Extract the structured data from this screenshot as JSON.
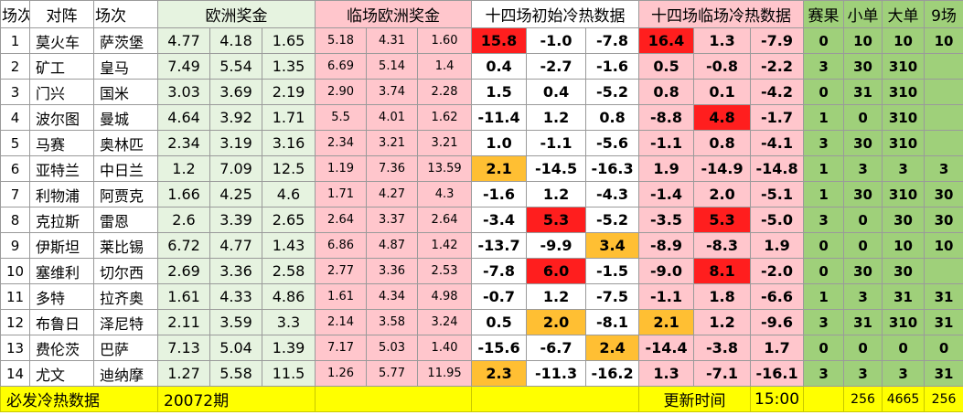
{
  "header": {
    "no": "场次",
    "match": "对阵",
    "match2": "场次",
    "euro": "欧洲奖金",
    "live_euro": "临场欧洲奖金",
    "init_temp": "十四场初始冷热数据",
    "live_temp": "十四场临场冷热数据",
    "result": "赛果",
    "small": "小单",
    "big": "大单",
    "nine": "9场"
  },
  "rows": [
    {
      "no": "1",
      "home": "莫火车",
      "away": "萨茨堡",
      "e": [
        "4.77",
        "4.18",
        "1.65"
      ],
      "l": [
        "5.18",
        "4.31",
        "1.60"
      ],
      "i": [
        "15.8",
        "-1.0",
        "-7.8"
      ],
      "c": [
        "16.4",
        "1.3",
        "-7.9"
      ],
      "r": "0",
      "s": "10",
      "b": "10",
      "n": "10"
    },
    {
      "no": "2",
      "home": "矿工",
      "away": "皇马",
      "e": [
        "7.49",
        "5.54",
        "1.35"
      ],
      "l": [
        "6.69",
        "5.14",
        "1.4"
      ],
      "i": [
        "0.4",
        "-2.7",
        "-1.6"
      ],
      "c": [
        "0.5",
        "-0.8",
        "-2.2"
      ],
      "r": "3",
      "s": "30",
      "b": "310",
      "n": ""
    },
    {
      "no": "3",
      "home": "门兴",
      "away": "国米",
      "e": [
        "3.03",
        "3.69",
        "2.19"
      ],
      "l": [
        "2.90",
        "3.74",
        "2.28"
      ],
      "i": [
        "1.5",
        "0.4",
        "-5.2"
      ],
      "c": [
        "0.8",
        "0.1",
        "-4.2"
      ],
      "r": "0",
      "s": "31",
      "b": "310",
      "n": ""
    },
    {
      "no": "4",
      "home": "波尔图",
      "away": "曼城",
      "e": [
        "4.64",
        "3.92",
        "1.71"
      ],
      "l": [
        "5.5",
        "4.01",
        "1.62"
      ],
      "i": [
        "-11.4",
        "1.2",
        "0.8"
      ],
      "c": [
        "-8.8",
        "4.8",
        "-1.7"
      ],
      "r": "1",
      "s": "0",
      "b": "310",
      "n": ""
    },
    {
      "no": "5",
      "home": "马赛",
      "away": "奥林匹",
      "e": [
        "2.34",
        "3.19",
        "3.16"
      ],
      "l": [
        "2.34",
        "3.21",
        "3.21"
      ],
      "i": [
        "1.0",
        "-1.1",
        "-5.6"
      ],
      "c": [
        "-1.1",
        "0.8",
        "-4.1"
      ],
      "r": "3",
      "s": "30",
      "b": "310",
      "n": ""
    },
    {
      "no": "6",
      "home": "亚特兰",
      "away": "中日兰",
      "e": [
        "1.2",
        "7.09",
        "12.5"
      ],
      "l": [
        "1.19",
        "7.36",
        "13.59"
      ],
      "i": [
        "2.1",
        "-14.5",
        "-16.3"
      ],
      "c": [
        "1.9",
        "-14.9",
        "-14.8"
      ],
      "r": "1",
      "s": "3",
      "b": "3",
      "n": "3"
    },
    {
      "no": "7",
      "home": "利物浦",
      "away": "阿贾克",
      "e": [
        "1.66",
        "4.25",
        "4.6"
      ],
      "l": [
        "1.71",
        "4.27",
        "4.3"
      ],
      "i": [
        "-1.6",
        "1.2",
        "-4.3"
      ],
      "c": [
        "-1.4",
        "2.0",
        "-5.1"
      ],
      "r": "1",
      "s": "30",
      "b": "310",
      "n": "30"
    },
    {
      "no": "8",
      "home": "克拉斯",
      "away": "雷恩",
      "e": [
        "2.6",
        "3.39",
        "2.65"
      ],
      "l": [
        "2.64",
        "3.37",
        "2.64"
      ],
      "i": [
        "-3.4",
        "5.3",
        "-5.2"
      ],
      "c": [
        "-3.5",
        "5.3",
        "-5.0"
      ],
      "r": "3",
      "s": "0",
      "b": "30",
      "n": "30"
    },
    {
      "no": "9",
      "home": "伊斯坦",
      "away": "莱比锡",
      "e": [
        "6.72",
        "4.77",
        "1.43"
      ],
      "l": [
        "6.86",
        "4.87",
        "1.42"
      ],
      "i": [
        "-13.7",
        "-9.9",
        "3.4"
      ],
      "c": [
        "-8.9",
        "-8.3",
        "1.9"
      ],
      "r": "0",
      "s": "0",
      "b": "10",
      "n": "10"
    },
    {
      "no": "10",
      "home": "塞维利",
      "away": "切尔西",
      "e": [
        "2.69",
        "3.36",
        "2.58"
      ],
      "l": [
        "2.77",
        "3.36",
        "2.53"
      ],
      "i": [
        "-7.8",
        "6.0",
        "-1.5"
      ],
      "c": [
        "-9.0",
        "8.1",
        "-2.0"
      ],
      "r": "0",
      "s": "30",
      "b": "30",
      "n": ""
    },
    {
      "no": "11",
      "home": "多特",
      "away": "拉齐奥",
      "e": [
        "1.61",
        "4.33",
        "4.86"
      ],
      "l": [
        "1.61",
        "4.34",
        "4.98"
      ],
      "i": [
        "-0.7",
        "1.2",
        "-7.5"
      ],
      "c": [
        "-1.1",
        "1.8",
        "-6.6"
      ],
      "r": "1",
      "s": "3",
      "b": "31",
      "n": "31"
    },
    {
      "no": "12",
      "home": "布鲁日",
      "away": "泽尼特",
      "e": [
        "2.11",
        "3.59",
        "3.3"
      ],
      "l": [
        "2.14",
        "3.58",
        "3.24"
      ],
      "i": [
        "0.5",
        "2.0",
        "-8.1"
      ],
      "c": [
        "2.1",
        "1.2",
        "-9.6"
      ],
      "r": "3",
      "s": "31",
      "b": "310",
      "n": "31"
    },
    {
      "no": "13",
      "home": "费伦茨",
      "away": "巴萨",
      "e": [
        "7.13",
        "5.04",
        "1.39"
      ],
      "l": [
        "7.17",
        "5.03",
        "1.40"
      ],
      "i": [
        "-15.6",
        "-6.7",
        "2.4"
      ],
      "c": [
        "-14.4",
        "-3.8",
        "1.7"
      ],
      "r": "0",
      "s": "0",
      "b": "0",
      "n": "0"
    },
    {
      "no": "14",
      "home": "尤文",
      "away": "迪纳摩",
      "e": [
        "1.27",
        "5.58",
        "11.5"
      ],
      "l": [
        "1.26",
        "5.77",
        "11.95"
      ],
      "i": [
        "2.3",
        "-11.3",
        "-16.2"
      ],
      "c": [
        "1.3",
        "-7.1",
        "-16.1"
      ],
      "r": "3",
      "s": "3",
      "b": "3",
      "n": "31"
    }
  ],
  "highlights": {
    "colors": {
      "red": "#ff1e1e",
      "orange": "#ffbf33"
    },
    "cells": [
      {
        "row": 0,
        "grp": "i",
        "idx": 0,
        "color": "red"
      },
      {
        "row": 0,
        "grp": "c",
        "idx": 0,
        "color": "red"
      },
      {
        "row": 3,
        "grp": "c",
        "idx": 1,
        "color": "red"
      },
      {
        "row": 5,
        "grp": "i",
        "idx": 0,
        "color": "orange"
      },
      {
        "row": 7,
        "grp": "i",
        "idx": 1,
        "color": "red"
      },
      {
        "row": 7,
        "grp": "c",
        "idx": 1,
        "color": "red"
      },
      {
        "row": 8,
        "grp": "i",
        "idx": 2,
        "color": "orange"
      },
      {
        "row": 9,
        "grp": "i",
        "idx": 1,
        "color": "red"
      },
      {
        "row": 9,
        "grp": "c",
        "idx": 1,
        "color": "red"
      },
      {
        "row": 11,
        "grp": "i",
        "idx": 1,
        "color": "orange"
      },
      {
        "row": 11,
        "grp": "c",
        "idx": 0,
        "color": "orange"
      },
      {
        "row": 12,
        "grp": "i",
        "idx": 2,
        "color": "orange"
      },
      {
        "row": 13,
        "grp": "i",
        "idx": 0,
        "color": "orange"
      }
    ]
  },
  "footer": {
    "title": "必发冷热数据",
    "issue": "20072期",
    "update_label": "更新时间",
    "update_time": "15:00",
    "n1": "256",
    "n2": "4665",
    "n3": "256"
  }
}
